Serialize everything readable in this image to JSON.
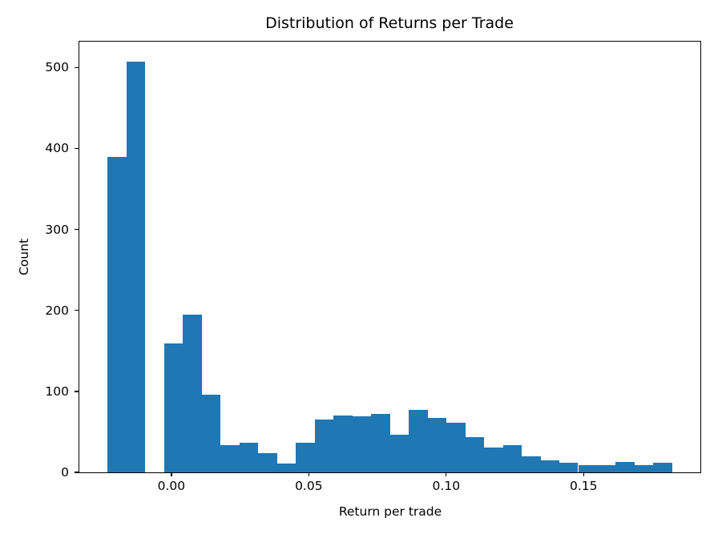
{
  "chart_data": {
    "type": "bar",
    "subtype": "histogram",
    "title": "Distribution of Returns per Trade",
    "xlabel": "Return per trade",
    "ylabel": "Count",
    "bar_color": "#1f77b4",
    "grid": false,
    "legend": null,
    "bin_edges": [
      -0.0232,
      -0.01635,
      -0.0095,
      -0.00265,
      0.0042,
      0.01105,
      0.0179,
      0.02475,
      0.0316,
      0.03845,
      0.04529,
      0.05214,
      0.05899,
      0.06584,
      0.07269,
      0.07954,
      0.08639,
      0.09324,
      0.10009,
      0.10694,
      0.11379,
      0.12064,
      0.12748,
      0.13433,
      0.14118,
      0.14803,
      0.15488,
      0.16173,
      0.16858,
      0.17543,
      0.18228
    ],
    "counts": [
      390,
      507,
      0,
      159,
      195,
      96,
      34,
      37,
      24,
      11,
      37,
      65,
      70,
      69,
      72,
      46,
      77,
      67,
      61,
      44,
      31,
      34,
      20,
      15,
      12,
      9,
      9,
      13,
      9,
      12
    ],
    "xlim": [
      -0.0335,
      0.1925
    ],
    "ylim": [
      0,
      532
    ],
    "xticks": {
      "values": [
        0.0,
        0.05,
        0.1,
        0.15
      ],
      "labels": [
        "0.00",
        "0.05",
        "0.10",
        "0.15"
      ]
    },
    "yticks": {
      "values": [
        0,
        100,
        200,
        300,
        400,
        500
      ],
      "labels": [
        "0",
        "100",
        "200",
        "300",
        "400",
        "500"
      ]
    }
  }
}
